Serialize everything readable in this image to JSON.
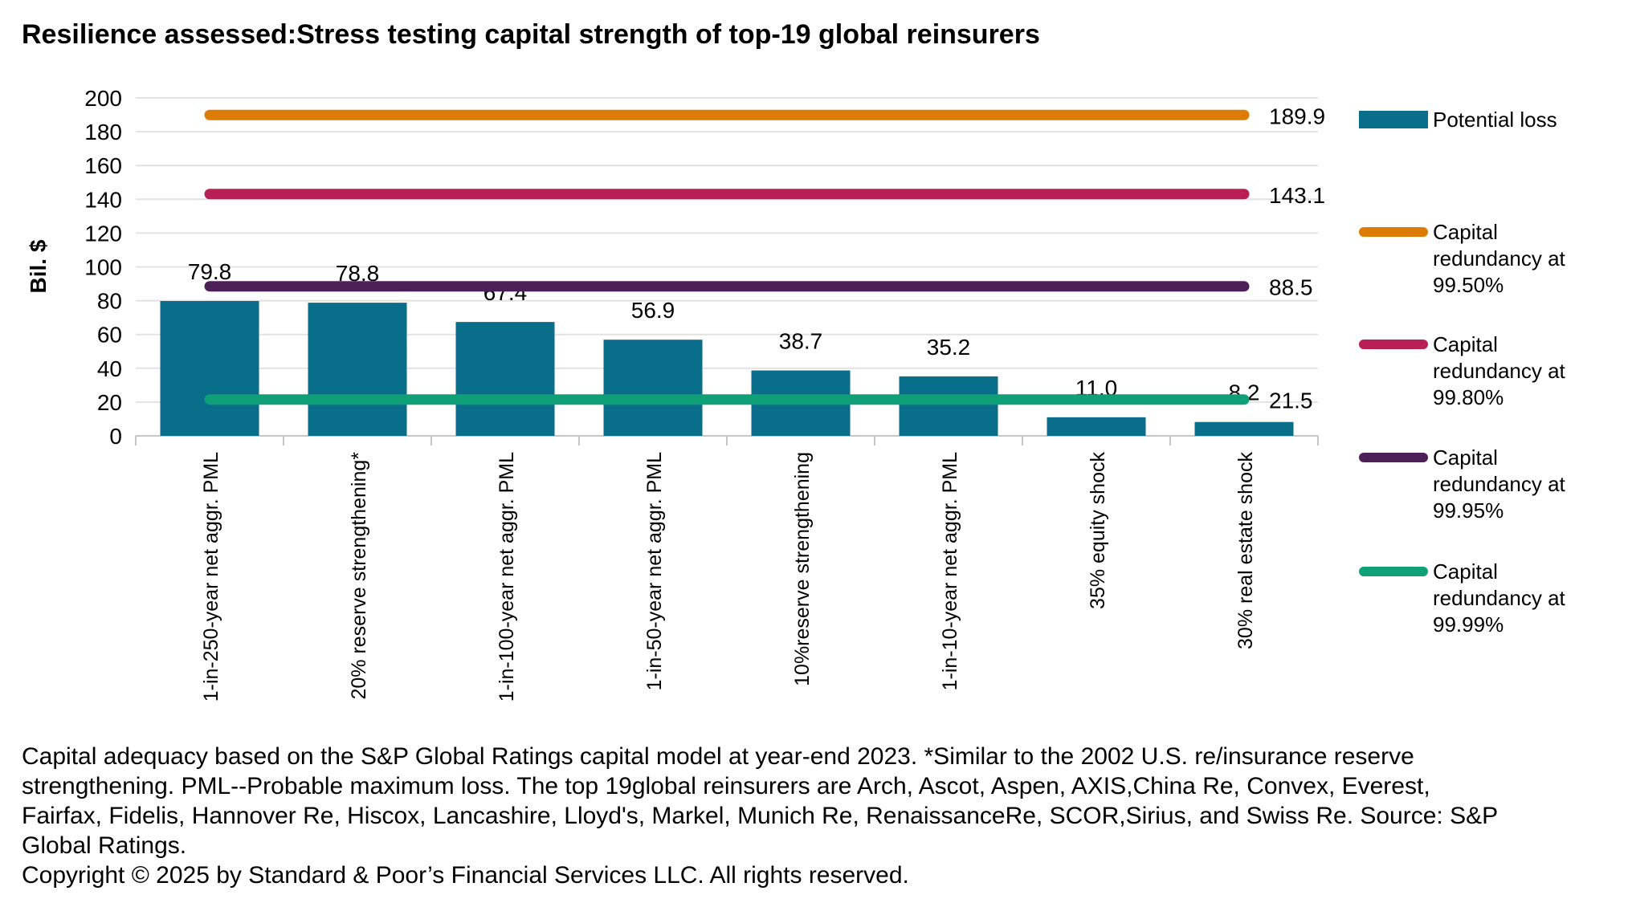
{
  "chart_data": {
    "type": "bar",
    "title": "Resilience assessed:Stress testing capital strength of top-19 global reinsurers",
    "ylabel": "Bil. $",
    "xlabel": "",
    "ylim": [
      0,
      200
    ],
    "ytick_step": 20,
    "grid": true,
    "legend_position": "right",
    "categories": [
      "1-in-250-year net aggr. PML",
      "20% reserve strengthening*",
      "1-in-100-year net aggr. PML",
      "1-in-50-year net aggr. PML",
      "10%reserve strengthening",
      "1-in-10-year net aggr. PML",
      "35% equity shock",
      "30% real estate shock"
    ],
    "series": [
      {
        "name": "Potential loss",
        "type": "bar",
        "color": "#086E8A",
        "values": [
          79.8,
          78.8,
          67.4,
          56.9,
          38.7,
          35.2,
          11.0,
          8.2
        ]
      }
    ],
    "reference_lines": [
      {
        "name": "Capital redundancy at 99.50%",
        "legend_lines": [
          "Capital",
          "redundancy at",
          "99.50%"
        ],
        "value": 189.9,
        "color": "#DD7C04"
      },
      {
        "name": "Capital redundancy at 99.80%",
        "legend_lines": [
          "Capital",
          "redundancy at",
          "99.80%"
        ],
        "value": 143.1,
        "color": "#B91F54"
      },
      {
        "name": "Capital redundancy at 99.95%",
        "legend_lines": [
          "Capital",
          "redundancy at",
          "99.95%"
        ],
        "value": 88.5,
        "color": "#4C2056"
      },
      {
        "name": "Capital redundancy at 99.99%",
        "legend_lines": [
          "Capital",
          "redundancy at",
          "99.99%"
        ],
        "value": 21.5,
        "color": "#10A078"
      }
    ],
    "colors": {
      "grid": "#E2E2E2",
      "axis": "#C6C6C6",
      "text": "#000000"
    }
  },
  "footnote": {
    "lines": [
      "Capital adequacy based on the S&P Global Ratings capital model at year-end 2023. *Similar to the 2002 U.S. re/insurance reserve",
      "strengthening.  PML--Probable maximum loss. The top 19global reinsurers are Arch, Ascot, Aspen, AXIS,China Re, Convex, Everest,",
      "Fairfax, Fidelis, Hannover Re, Hiscox, Lancashire, Lloyd's, Markel, Munich Re, RenaissanceRe, SCOR,Sirius, and Swiss Re. Source: S&P",
      "Global Ratings.",
      "Copyright © 2025 by Standard & Poor’s Financial Services LLC. All rights reserved."
    ]
  }
}
